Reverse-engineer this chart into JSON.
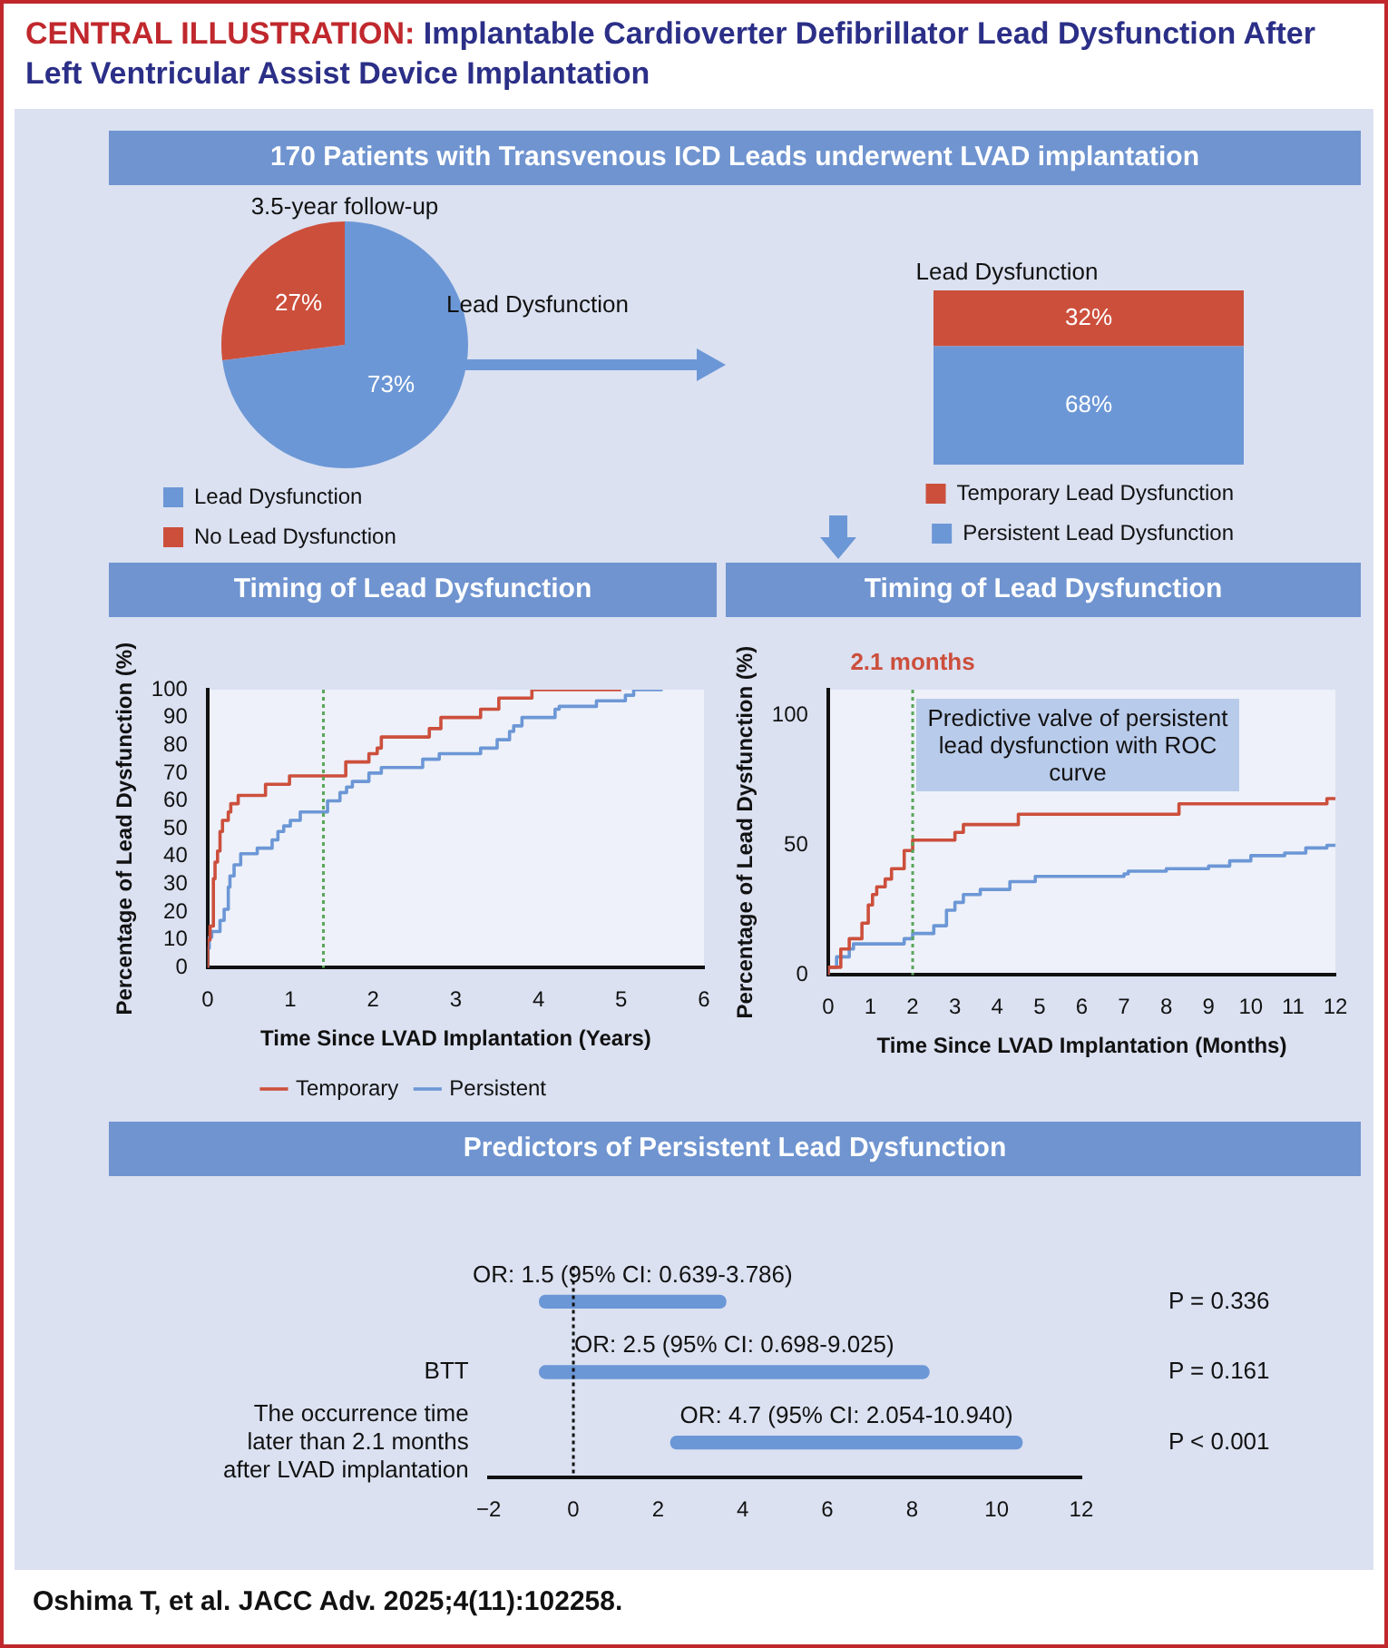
{
  "chart_data": [
    {
      "type": "pie",
      "title": "3.5-year follow-up",
      "categories": [
        "Lead Dysfunction",
        "No Lead Dysfunction"
      ],
      "values": [
        73,
        27
      ],
      "colors": [
        "#6c97d6",
        "#cc4f3c"
      ],
      "value_labels": [
        "73%",
        "27%"
      ],
      "legend": "bottom left",
      "annotations": [
        "CENTRAL ILLUSTRATION:",
        "Implantable Cardioverter Defibrillator Lead Dysfunction After Left Ventricular Assist Device Implantation",
        "170 Patients with Transvenous ICD Leads underwent LVAD implantation",
        "Lead Dysfunction"
      ]
    },
    {
      "type": "bar",
      "title": "Lead Dysfunction",
      "stacked": true,
      "categories": [
        null
      ],
      "legend": "bottom right",
      "series": [
        {
          "name": "Persistent Lead Dysfunction",
          "color": "#6c97d6",
          "values": [
            68
          ],
          "value_labels": [
            "68%"
          ]
        },
        {
          "name": "Temporary Lead Dysfunction",
          "color": "#cc4f3c",
          "values": [
            32
          ],
          "value_labels": [
            "32%"
          ]
        }
      ]
    },
    {
      "type": "step",
      "title": "Timing of Lead Dysfunction",
      "xlabel": "Time Since LVAD Implantation (Years)",
      "ylabel": "Percentage of Lead Dysfunction (%)",
      "xlim": [
        0,
        6
      ],
      "xticks": [
        0,
        1,
        2,
        3,
        4,
        5,
        6
      ],
      "ylim": [
        0,
        100
      ],
      "yticks": [
        0,
        10,
        20,
        30,
        40,
        50,
        60,
        70,
        80,
        90,
        100
      ],
      "grid": false,
      "legend": "bottom",
      "marker": "none",
      "ref_lines": [
        {
          "axis": "x",
          "value": 1.4,
          "color": "#5aa65a",
          "line_style": "dotted"
        }
      ],
      "series": [
        {
          "name": "Temporary",
          "color": "#cc4f3c",
          "x": [
            0,
            0.03,
            0.07,
            0.09,
            0.12,
            0.15,
            0.18,
            0.25,
            0.28,
            0.37,
            0.7,
            0.99,
            1.67,
            1.95,
            2.05,
            2.1,
            2.68,
            2.82,
            3.3,
            3.52,
            3.92,
            5.0
          ],
          "values": [
            0,
            10,
            15,
            32,
            38,
            42,
            49,
            53,
            56,
            59,
            62,
            66,
            69,
            74,
            77,
            79,
            83,
            86,
            90,
            93,
            97,
            100
          ]
        },
        {
          "name": "Persistent",
          "color": "#6c97d6",
          "x": [
            0,
            0.02,
            0.05,
            0.15,
            0.2,
            0.25,
            0.27,
            0.32,
            0.4,
            0.6,
            0.78,
            0.85,
            0.92,
            1.0,
            1.12,
            1.45,
            1.6,
            1.68,
            1.75,
            1.95,
            2.1,
            2.6,
            2.8,
            3.3,
            3.5,
            3.65,
            3.7,
            3.8,
            4.2,
            4.25,
            4.7,
            5.05,
            5.15,
            5.5
          ],
          "values": [
            0,
            7,
            11,
            13,
            17,
            21,
            29,
            33,
            37,
            41,
            43,
            46,
            49,
            51,
            53,
            56,
            60,
            63,
            65,
            67,
            70,
            72,
            75,
            77,
            79,
            82,
            85,
            87,
            90,
            93,
            94,
            96,
            98,
            100
          ]
        }
      ]
    },
    {
      "type": "step",
      "title": "Timing of Lead Dysfunction",
      "xlabel": "Time Since LVAD Implantation (Months)",
      "ylabel": "Percentage of Lead Dysfunction (%)",
      "xlim": [
        0,
        12
      ],
      "xticks": [
        0,
        1,
        2,
        3,
        4,
        5,
        6,
        7,
        8,
        9,
        10,
        11,
        12
      ],
      "ylim": [
        0,
        110
      ],
      "yticks": [
        0,
        50,
        100
      ],
      "grid": false,
      "legend": false,
      "marker": "none",
      "ref_lines": [
        {
          "axis": "x",
          "value": 2,
          "label": "2.1 months",
          "color": "#5aa65a",
          "line_style": "dotted"
        }
      ],
      "annotations": [
        "Predictive valve of persistent lead dysfunction with ROC curve"
      ],
      "series": [
        {
          "color": "#cc4f3c",
          "x": [
            0,
            0.3,
            0.5,
            0.8,
            0.95,
            1.05,
            1.15,
            1.35,
            1.5,
            1.8,
            2.0,
            3.0,
            3.2,
            4.5,
            8.3,
            11.8,
            12
          ],
          "values": [
            0,
            3,
            10,
            14,
            20,
            27,
            31,
            34,
            37,
            41,
            48,
            52,
            55,
            58,
            62,
            66,
            68
          ]
        },
        {
          "color": "#6c97d6",
          "x": [
            0,
            0.2,
            0.5,
            0.6,
            1.8,
            2.0,
            2.5,
            2.8,
            3.0,
            3.2,
            3.6,
            4.3,
            4.9,
            7.0,
            7.1,
            8.0,
            9.0,
            9.5,
            10.0,
            10.8,
            11.3,
            11.8,
            12
          ],
          "values": [
            0,
            3,
            7,
            10,
            12,
            14,
            16,
            19,
            25,
            28,
            31,
            33,
            36,
            38,
            39,
            40,
            41,
            42,
            44,
            46,
            47,
            49,
            50
          ]
        }
      ]
    },
    {
      "type": "bar",
      "title": "Predictors of Persistent Lead Dysfunction",
      "orientation": "horizontal",
      "categories": [
        null,
        "BTT",
        "The occurrence time later than 2.1 months after LVAD implantation"
      ],
      "y2_categories": [
        "P = 0.336",
        "P = 0.161",
        "P < 0.001"
      ],
      "xlim": [
        -2,
        12
      ],
      "xticks": [
        {
          "value": -2,
          "label": "−2"
        },
        0,
        2,
        4,
        6,
        8,
        10,
        12
      ],
      "grid": false,
      "legend": false,
      "base": [
        -0.8,
        -0.8,
        2.3
      ],
      "values": [
        4.4,
        9.2,
        8.3
      ],
      "color": "#6c97d6",
      "ref_lines": [
        {
          "axis": "x",
          "value": 0,
          "color": "#111111",
          "line_style": "dotted"
        }
      ],
      "annotations": [
        "OR: 1.5 (95% CI: 0.639-3.786)",
        "OR: 2.5 (95% CI: 0.698-9.025)",
        "OR: 4.7 (95% CI: 2.054-10.940)",
        "Oshima T, et al. JACC Adv. 2025;4(11):102258."
      ]
    }
  ]
}
